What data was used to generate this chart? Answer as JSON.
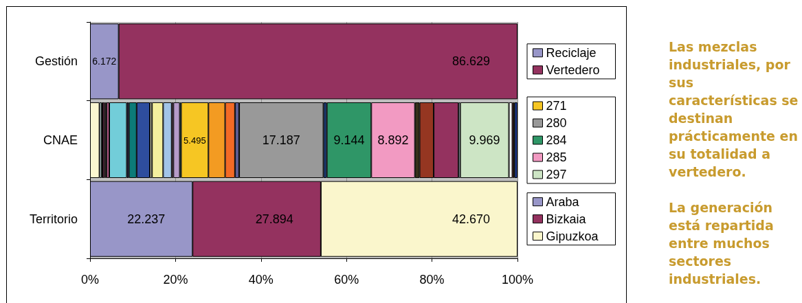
{
  "chart_data": {
    "type": "bar",
    "orientation": "horizontal",
    "stacked": true,
    "categories": [
      "Gestión",
      "CNAE",
      "Territorio"
    ],
    "xlim": [
      0,
      100
    ],
    "xticks": [
      {
        "value": 0,
        "label": "0%"
      },
      {
        "value": 20,
        "label": "20%"
      },
      {
        "value": 40,
        "label": "40%"
      },
      {
        "value": 60,
        "label": "60%"
      },
      {
        "value": 80,
        "label": "80%"
      },
      {
        "value": 100,
        "label": "100%"
      }
    ],
    "grid": "x",
    "legend": "right",
    "annotations": [
      "Las mezclas industriales, por sus características se destinan prácticamente en su totalidad a vertedero.",
      "La generación está repartida entre muchos sectores industriales.",
      {
        "text": "6.172",
        "x": 6.7,
        "y": "Gestión"
      },
      {
        "text": "86.629",
        "x": 100.0,
        "y": "Gestión"
      },
      {
        "text": "5.495",
        "x": 27.7,
        "y": "CNAE"
      },
      {
        "text": "17.187",
        "x": 54.6,
        "y": "CNAE"
      },
      {
        "text": "9.144",
        "x": 65.8,
        "y": "CNAE"
      },
      {
        "text": "8.892",
        "x": 76.0,
        "y": "CNAE"
      },
      {
        "text": "9.969",
        "x": 98.0,
        "y": "CNAE"
      },
      {
        "text": "22.237",
        "x": 24.0,
        "y": "Territorio"
      },
      {
        "text": "27.894",
        "x": 54.0,
        "y": "Territorio"
      },
      {
        "text": "42.670",
        "x": 100.0,
        "y": "Territorio"
      }
    ],
    "series": [
      {
        "name": "Reciclaje",
        "color": "#9896c8",
        "values": [
          6.7,
          null,
          null
        ]
      },
      {
        "name": "Vertedero",
        "color": "#94325f",
        "values": [
          93.3,
          null,
          null
        ]
      },
      {
        "color": "#fbf7d0",
        "values": [
          null,
          2.2,
          null
        ]
      },
      {
        "color": "#d0f0f0",
        "values": [
          null,
          0.5,
          null
        ]
      },
      {
        "color": "#202060",
        "values": [
          null,
          0.2,
          null
        ]
      },
      {
        "color": "#993366",
        "values": [
          null,
          0.4,
          null
        ]
      },
      {
        "color": "#ff80a0",
        "values": [
          null,
          0.3,
          null
        ]
      },
      {
        "color": "#1a1a1a",
        "values": [
          null,
          0.3,
          null
        ]
      },
      {
        "color": "#cc6699",
        "values": [
          null,
          0.6,
          null
        ]
      },
      {
        "color": "#72cdd9",
        "values": [
          null,
          4.1,
          null
        ]
      },
      {
        "color": "#2a2a50",
        "values": [
          null,
          0.5,
          null
        ]
      },
      {
        "color": "#0c7b78",
        "values": [
          null,
          1.8,
          null
        ]
      },
      {
        "color": "#2e4d9e",
        "values": [
          null,
          3.1,
          null
        ]
      },
      {
        "color": "#f0f0d0",
        "values": [
          null,
          0.5,
          null
        ]
      },
      {
        "color": "#f4ef9e",
        "values": [
          null,
          2.6,
          null
        ]
      },
      {
        "color": "#a2c4e8",
        "values": [
          null,
          2.0,
          null
        ]
      },
      {
        "color": "#f0a0d0",
        "values": [
          null,
          0.4,
          null
        ]
      },
      {
        "color": "#b69bc9",
        "values": [
          null,
          1.5,
          null
        ]
      },
      {
        "color": "#10a0a0",
        "values": [
          null,
          0.3,
          null
        ]
      },
      {
        "name": "271",
        "color": "#f6c623",
        "values": [
          null,
          6.4,
          null
        ]
      },
      {
        "color": "#f39b22",
        "values": [
          null,
          3.9,
          null
        ]
      },
      {
        "color": "#f26a26",
        "values": [
          null,
          2.3,
          null
        ]
      },
      {
        "color": "#5c5c90",
        "values": [
          null,
          1.0,
          null
        ]
      },
      {
        "name": "280",
        "color": "#999999",
        "values": [
          null,
          19.7,
          null
        ]
      },
      {
        "color": "#1e3a70",
        "values": [
          null,
          0.8,
          null
        ]
      },
      {
        "name": "284",
        "color": "#2f9667",
        "values": [
          null,
          10.4,
          null
        ]
      },
      {
        "name": "285",
        "color": "#f29ac2",
        "values": [
          null,
          10.2,
          null
        ]
      },
      {
        "color": "#35301a",
        "values": [
          null,
          1.1,
          null
        ]
      },
      {
        "color": "#953621",
        "values": [
          null,
          3.3,
          null
        ]
      },
      {
        "color": "#94325f",
        "values": [
          null,
          5.8,
          null
        ]
      },
      {
        "color": "#d0e8f8",
        "values": [
          null,
          0.4,
          null
        ]
      },
      {
        "name": "297",
        "color": "#cde5c5",
        "values": [
          null,
          11.4,
          null
        ]
      },
      {
        "color": "#ffffff",
        "values": [
          null,
          0.8,
          null
        ]
      },
      {
        "color": "#ff0000",
        "values": [
          null,
          0.3,
          null
        ]
      },
      {
        "color": "#00a000",
        "values": [
          null,
          0.2,
          null
        ]
      },
      {
        "color": "#1f3a90",
        "values": [
          null,
          0.7,
          null
        ]
      },
      {
        "name": "Araba",
        "color": "#9896c8",
        "values": [
          null,
          null,
          24.0
        ]
      },
      {
        "name": "Bizkaia",
        "color": "#94325f",
        "values": [
          null,
          null,
          30.0
        ]
      },
      {
        "name": "Gipuzkoa",
        "color": "#faf6cc",
        "values": [
          null,
          null,
          46.0
        ]
      }
    ]
  }
}
